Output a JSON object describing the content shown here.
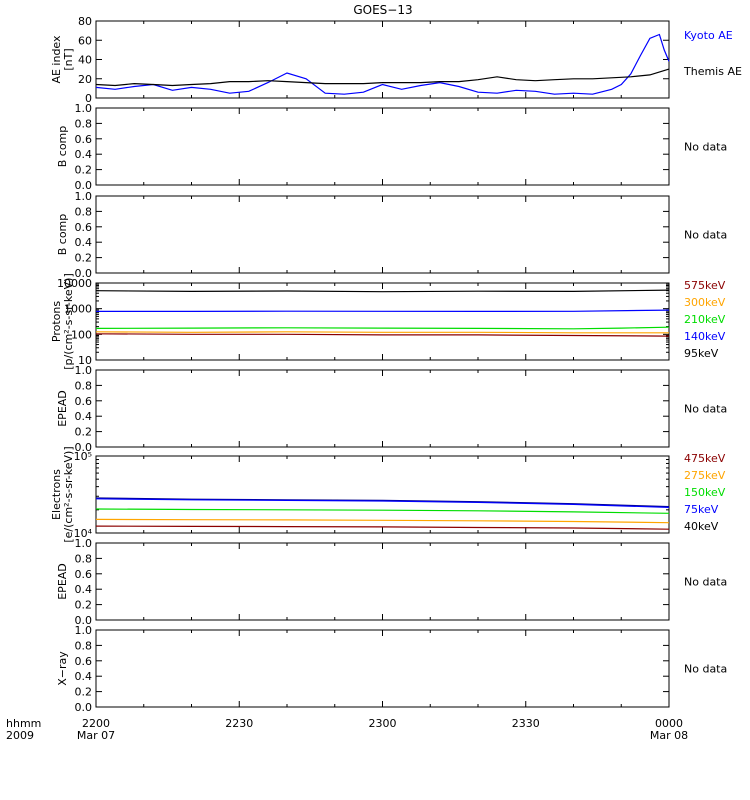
{
  "title": "GOES−13",
  "no_data_label": "No data",
  "colors": {
    "black": "#000000",
    "blue": "#0000ff",
    "navy": "#000080",
    "green": "#00dd00",
    "orange": "#ffa500",
    "darkred": "#8b0000",
    "axis": "#000000",
    "background": "#ffffff"
  },
  "time_axis": {
    "tick_labels": [
      "2200",
      "2230",
      "2300",
      "2330",
      "0000"
    ],
    "date_labels": {
      "start": "Mar 07",
      "end": "Mar 08"
    },
    "corner_labels": [
      "hhmm",
      "2009"
    ],
    "tmin": 0,
    "tmax": 120
  },
  "chart_data": [
    {
      "id": "ae",
      "type": "line",
      "ylabel": [
        "AE index",
        "[nT]"
      ],
      "ylim": [
        0,
        80
      ],
      "yticks": [
        0,
        20,
        40,
        60,
        80
      ],
      "yticklabels": [
        "0",
        "20",
        "40",
        "60",
        "80"
      ],
      "legend": [
        {
          "label": "Kyoto AE",
          "color": "blue"
        },
        {
          "label": "Themis AE",
          "color": "black"
        }
      ],
      "series": [
        {
          "name": "Kyoto AE",
          "color": "blue",
          "x": [
            0,
            4,
            8,
            12,
            16,
            20,
            24,
            28,
            32,
            36,
            40,
            44,
            48,
            52,
            56,
            60,
            64,
            68,
            72,
            76,
            80,
            84,
            88,
            92,
            96,
            100,
            104,
            108,
            110,
            112,
            114,
            116,
            118,
            119,
            120
          ],
          "y": [
            11,
            9,
            12,
            14,
            8,
            11,
            9,
            5,
            7,
            16,
            26,
            20,
            5,
            4,
            6,
            14,
            9,
            13,
            16,
            12,
            6,
            5,
            8,
            7,
            4,
            5,
            4,
            9,
            14,
            25,
            44,
            62,
            66,
            50,
            38
          ]
        },
        {
          "name": "Themis AE",
          "color": "black",
          "x": [
            0,
            4,
            8,
            12,
            16,
            20,
            24,
            28,
            32,
            36,
            40,
            44,
            48,
            52,
            56,
            60,
            64,
            68,
            72,
            76,
            80,
            84,
            88,
            92,
            96,
            100,
            104,
            108,
            112,
            116,
            120
          ],
          "y": [
            14,
            13,
            15,
            14,
            13,
            14,
            15,
            17,
            17,
            18,
            17,
            16,
            15,
            15,
            15,
            16,
            16,
            16,
            17,
            17,
            19,
            22,
            19,
            18,
            19,
            20,
            20,
            21,
            22,
            24,
            30
          ]
        }
      ]
    },
    {
      "id": "b1",
      "type": "line",
      "ylabel": [
        "B comp"
      ],
      "ylim": [
        0,
        1
      ],
      "yticks": [
        0,
        0.2,
        0.4,
        0.6,
        0.8,
        1.0
      ],
      "yticklabels": [
        "0.0",
        "0.2",
        "0.4",
        "0.6",
        "0.8",
        "1.0"
      ],
      "no_data": true,
      "series": []
    },
    {
      "id": "b2",
      "type": "line",
      "ylabel": [
        "B comp"
      ],
      "ylim": [
        0,
        1
      ],
      "yticks": [
        0,
        0.2,
        0.4,
        0.6,
        0.8,
        1.0
      ],
      "yticklabels": [
        "0.0",
        "0.2",
        "0.4",
        "0.6",
        "0.8",
        "1.0"
      ],
      "no_data": true,
      "series": []
    },
    {
      "id": "protons",
      "type": "line",
      "log": true,
      "ylabel": [
        "Protons",
        "[p/(cm²-s-sr-keV)]"
      ],
      "ylim": [
        10,
        10000
      ],
      "yticks": [
        10,
        100,
        1000,
        10000
      ],
      "yticklabels": [
        "10",
        "100",
        "1000",
        "10000"
      ],
      "legend": [
        {
          "label": "575keV",
          "color": "darkred"
        },
        {
          "label": "300keV",
          "color": "orange"
        },
        {
          "label": "210keV",
          "color": "green"
        },
        {
          "label": "140keV",
          "color": "blue"
        },
        {
          "label": "95keV",
          "color": "black"
        }
      ],
      "series": [
        {
          "name": "95keV",
          "color": "black",
          "x": [
            0,
            20,
            40,
            60,
            80,
            100,
            120
          ],
          "y": [
            5000,
            4700,
            4900,
            4600,
            4800,
            4700,
            5300
          ]
        },
        {
          "name": "140keV",
          "color": "blue",
          "x": [
            0,
            20,
            40,
            60,
            80,
            100,
            120
          ],
          "y": [
            780,
            780,
            800,
            790,
            780,
            790,
            880
          ]
        },
        {
          "name": "210keV",
          "color": "green",
          "x": [
            0,
            20,
            40,
            60,
            80,
            100,
            110,
            120
          ],
          "y": [
            170,
            175,
            180,
            175,
            170,
            165,
            175,
            190
          ]
        },
        {
          "name": "300keV",
          "color": "orange",
          "x": [
            0,
            20,
            40,
            60,
            80,
            100,
            120
          ],
          "y": [
            125,
            120,
            125,
            120,
            120,
            115,
            115
          ]
        },
        {
          "name": "575keV",
          "color": "darkred",
          "x": [
            0,
            20,
            40,
            60,
            80,
            100,
            120
          ],
          "y": [
            105,
            100,
            100,
            95,
            95,
            90,
            85
          ]
        }
      ]
    },
    {
      "id": "epead1",
      "type": "line",
      "ylabel": [
        "EPEAD"
      ],
      "ylim": [
        0,
        1
      ],
      "yticks": [
        0,
        0.2,
        0.4,
        0.6,
        0.8,
        1.0
      ],
      "yticklabels": [
        "0.0",
        "0.2",
        "0.4",
        "0.6",
        "0.8",
        "1.0"
      ],
      "no_data": true,
      "series": []
    },
    {
      "id": "electrons",
      "type": "line",
      "log": true,
      "ylabel": [
        "Electrons",
        "[e/(cm²-s-sr-keV)]"
      ],
      "ylim": [
        10000,
        100000
      ],
      "yticks": [
        10000,
        100000
      ],
      "yticklabels": [
        "10⁴",
        "10⁵"
      ],
      "legend": [
        {
          "label": "475keV",
          "color": "darkred"
        },
        {
          "label": "275keV",
          "color": "orange"
        },
        {
          "label": "150keV",
          "color": "green"
        },
        {
          "label": "75keV",
          "color": "blue"
        },
        {
          "label": "40keV",
          "color": "black"
        }
      ],
      "series": [
        {
          "name": "40keV",
          "color": "navy",
          "x": [
            0,
            20,
            40,
            60,
            80,
            100,
            120
          ],
          "y": [
            28500,
            27500,
            27000,
            26500,
            25500,
            24000,
            22000
          ]
        },
        {
          "name": "75keV",
          "color": "blue",
          "x": [
            0,
            20,
            40,
            60,
            80,
            100,
            120
          ],
          "y": [
            27800,
            27000,
            26500,
            26000,
            25000,
            23500,
            21500
          ]
        },
        {
          "name": "150keV",
          "color": "green",
          "x": [
            0,
            20,
            40,
            60,
            80,
            100,
            120
          ],
          "y": [
            20500,
            20200,
            20000,
            19800,
            19400,
            18800,
            18000
          ]
        },
        {
          "name": "275keV",
          "color": "orange",
          "x": [
            0,
            20,
            40,
            60,
            80,
            100,
            120
          ],
          "y": [
            15000,
            14900,
            14800,
            14600,
            14400,
            14100,
            13600
          ]
        },
        {
          "name": "475keV",
          "color": "darkred",
          "x": [
            0,
            20,
            40,
            60,
            80,
            100,
            120
          ],
          "y": [
            12300,
            12200,
            12100,
            12000,
            11800,
            11600,
            11200
          ]
        }
      ]
    },
    {
      "id": "epead2",
      "type": "line",
      "ylabel": [
        "EPEAD"
      ],
      "ylim": [
        0,
        1
      ],
      "yticks": [
        0,
        0.2,
        0.4,
        0.6,
        0.8,
        1.0
      ],
      "yticklabels": [
        "0.0",
        "0.2",
        "0.4",
        "0.6",
        "0.8",
        "1.0"
      ],
      "no_data": true,
      "series": []
    },
    {
      "id": "xray",
      "type": "line",
      "ylabel": [
        "X−ray"
      ],
      "ylim": [
        0,
        1
      ],
      "yticks": [
        0,
        0.2,
        0.4,
        0.6,
        0.8,
        1.0
      ],
      "yticklabels": [
        "0.0",
        "0.2",
        "0.4",
        "0.6",
        "0.8",
        "1.0"
      ],
      "no_data": true,
      "series": []
    }
  ]
}
